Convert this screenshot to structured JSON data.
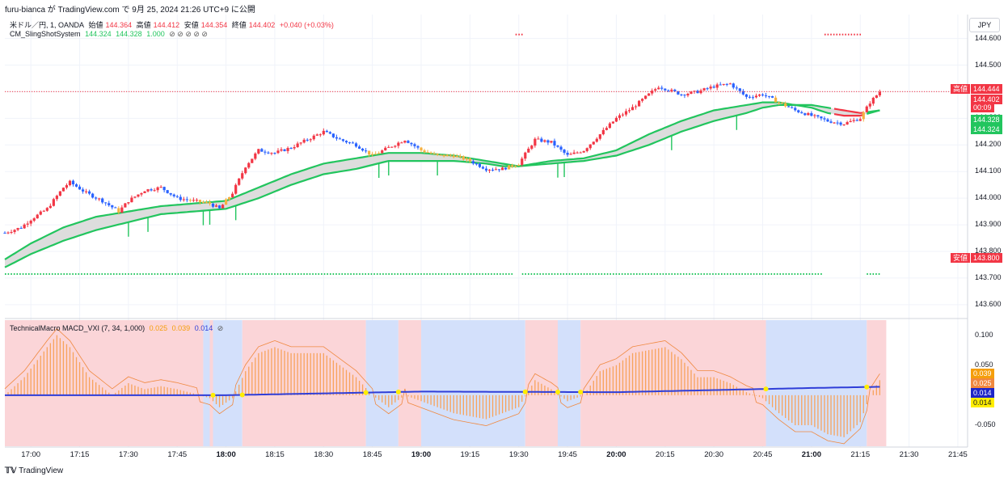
{
  "header": {
    "publish_line": "furu-bianca が TradingView.com で 9月 25, 2024 21:26 UTC+9 に公開"
  },
  "legend_main": {
    "symbol": "米ドル／円, 1, OANDA",
    "open_label": "始値",
    "open": "144.364",
    "high_label": "高値",
    "high": "144.412",
    "low_label": "安値",
    "low": "144.354",
    "close_label": "終値",
    "close": "144.402",
    "change": "+0.040 (+0.03%)"
  },
  "legend_indicator": {
    "name": "CM_SlingShotSystem",
    "v1": "144.324",
    "v2": "144.328",
    "v3": "1.000",
    "icons": "⊘ ⊘ ⊘ ⊘ ⊘"
  },
  "legend_macd": {
    "name": "TechnicalMacro MACD_VXI (7, 34, 1,000)",
    "v1": "0.025",
    "v2": "0.039",
    "v3": "0.014",
    "icon": "⊘"
  },
  "currency_button": "JPY",
  "footer": {
    "brand": "TradingView"
  },
  "price_tags": {
    "high_label": "高値",
    "high_value": "144.444",
    "last_value": "144.402",
    "countdown": "00:09",
    "ema_fast": "144.328",
    "ema_slow": "144.324",
    "low_label": "安値",
    "low_value": "143.800"
  },
  "macd_tags": {
    "t1": "0.039",
    "t2": "0.025",
    "t3": "0.014",
    "t4": "0.014"
  },
  "colors": {
    "up": "#f23645",
    "down": "#2962ff",
    "ema": "#22c55e",
    "band": "#dddddd",
    "macd_hist": "#f7a35c",
    "macd_line": "#2f3ed8",
    "bg_bull": "#fbd5d8",
    "bg_bear": "#d3e0fb"
  },
  "chart_data": [
    {
      "type": "candlestick",
      "title": "米ドル／円, 1, OANDA",
      "y_ticks": [
        "144.600",
        "144.500",
        "144.400",
        "144.300",
        "144.200",
        "144.100",
        "144.000",
        "143.900",
        "143.800",
        "143.700",
        "143.600"
      ],
      "x_ticks": [
        "17:00",
        "17:15",
        "17:30",
        "17:45",
        "18:00",
        "18:15",
        "18:30",
        "18:45",
        "19:00",
        "19:15",
        "19:30",
        "19:45",
        "20:00",
        "20:15",
        "20:30",
        "20:45",
        "21:00",
        "21:15",
        "21:30",
        "21:45"
      ],
      "bold_ticks": [
        "18:00",
        "19:00",
        "20:00",
        "21:00"
      ],
      "x_range": [
        "16:52",
        "21:48"
      ],
      "ylim": [
        143.56,
        144.69
      ],
      "price_anchors": [
        [
          "16:52",
          143.87
        ],
        [
          "16:57",
          143.89
        ],
        [
          "17:00",
          143.92
        ],
        [
          "17:05",
          143.96
        ],
        [
          "17:10",
          144.04
        ],
        [
          "17:12",
          144.06
        ],
        [
          "17:17",
          144.02
        ],
        [
          "17:22",
          143.99
        ],
        [
          "17:27",
          143.95
        ],
        [
          "17:30",
          143.99
        ],
        [
          "17:35",
          144.03
        ],
        [
          "17:40",
          144.04
        ],
        [
          "17:45",
          144.0
        ],
        [
          "17:50",
          143.99
        ],
        [
          "17:55",
          143.98
        ],
        [
          "17:58",
          143.96
        ],
        [
          "18:02",
          144.02
        ],
        [
          "18:06",
          144.12
        ],
        [
          "18:10",
          144.18
        ],
        [
          "18:15",
          144.17
        ],
        [
          "18:20",
          144.19
        ],
        [
          "18:25",
          144.22
        ],
        [
          "18:30",
          144.25
        ],
        [
          "18:35",
          144.22
        ],
        [
          "18:40",
          144.2
        ],
        [
          "18:45",
          144.16
        ],
        [
          "18:50",
          144.19
        ],
        [
          "18:55",
          144.22
        ],
        [
          "19:00",
          144.18
        ],
        [
          "19:05",
          144.16
        ],
        [
          "19:10",
          144.16
        ],
        [
          "19:15",
          144.14
        ],
        [
          "19:20",
          144.11
        ],
        [
          "19:25",
          144.11
        ],
        [
          "19:30",
          144.13
        ],
        [
          "19:35",
          144.22
        ],
        [
          "19:40",
          144.21
        ],
        [
          "19:45",
          144.16
        ],
        [
          "19:50",
          144.18
        ],
        [
          "19:55",
          144.24
        ],
        [
          "20:00",
          144.3
        ],
        [
          "20:05",
          144.34
        ],
        [
          "20:10",
          144.39
        ],
        [
          "20:13",
          144.42
        ],
        [
          "20:20",
          144.39
        ],
        [
          "20:25",
          144.4
        ],
        [
          "20:30",
          144.42
        ],
        [
          "20:35",
          144.43
        ],
        [
          "20:40",
          144.38
        ],
        [
          "20:45",
          144.39
        ],
        [
          "20:50",
          144.36
        ],
        [
          "20:55",
          144.33
        ],
        [
          "21:00",
          144.31
        ],
        [
          "21:05",
          144.29
        ],
        [
          "21:10",
          144.28
        ],
        [
          "21:15",
          144.3
        ],
        [
          "21:18",
          144.36
        ],
        [
          "21:21",
          144.4
        ]
      ],
      "ema_fast_anchors": [
        [
          "16:52",
          143.77
        ],
        [
          "17:00",
          143.83
        ],
        [
          "17:10",
          143.89
        ],
        [
          "17:20",
          143.93
        ],
        [
          "17:30",
          143.95
        ],
        [
          "17:40",
          143.97
        ],
        [
          "17:50",
          143.98
        ],
        [
          "18:00",
          143.99
        ],
        [
          "18:10",
          144.04
        ],
        [
          "18:20",
          144.09
        ],
        [
          "18:30",
          144.13
        ],
        [
          "18:40",
          144.15
        ],
        [
          "18:50",
          144.17
        ],
        [
          "19:00",
          144.17
        ],
        [
          "19:10",
          144.16
        ],
        [
          "19:20",
          144.14
        ],
        [
          "19:25",
          144.13
        ],
        [
          "19:30",
          144.12
        ],
        [
          "19:40",
          144.14
        ],
        [
          "19:50",
          144.15
        ],
        [
          "20:00",
          144.18
        ],
        [
          "20:10",
          144.24
        ],
        [
          "20:20",
          144.29
        ],
        [
          "20:30",
          144.33
        ],
        [
          "20:40",
          144.35
        ],
        [
          "20:45",
          144.36
        ],
        [
          "20:50",
          144.36
        ],
        [
          "21:00",
          144.34
        ],
        [
          "21:05",
          144.32
        ],
        [
          "21:10",
          144.31
        ],
        [
          "21:15",
          144.31
        ],
        [
          "21:21",
          144.33
        ]
      ],
      "ema_slow_anchors": [
        [
          "16:52",
          143.74
        ],
        [
          "17:00",
          143.79
        ],
        [
          "17:10",
          143.84
        ],
        [
          "17:20",
          143.88
        ],
        [
          "17:30",
          143.91
        ],
        [
          "17:40",
          143.94
        ],
        [
          "17:50",
          143.95
        ],
        [
          "18:00",
          143.96
        ],
        [
          "18:10",
          144.0
        ],
        [
          "18:20",
          144.05
        ],
        [
          "18:30",
          144.09
        ],
        [
          "18:40",
          144.11
        ],
        [
          "18:50",
          144.14
        ],
        [
          "19:00",
          144.14
        ],
        [
          "19:10",
          144.14
        ],
        [
          "19:20",
          144.13
        ],
        [
          "19:25",
          144.12
        ],
        [
          "19:30",
          144.12
        ],
        [
          "19:40",
          144.13
        ],
        [
          "19:50",
          144.14
        ],
        [
          "20:00",
          144.16
        ],
        [
          "20:10",
          144.2
        ],
        [
          "20:20",
          144.25
        ],
        [
          "20:30",
          144.29
        ],
        [
          "20:40",
          144.32
        ],
        [
          "20:45",
          144.34
        ],
        [
          "20:50",
          144.35
        ],
        [
          "21:00",
          144.35
        ],
        [
          "21:05",
          144.34
        ],
        [
          "21:10",
          144.33
        ],
        [
          "21:15",
          144.32
        ],
        [
          "21:21",
          144.33
        ]
      ],
      "high_marker": 144.444,
      "low_marker": 143.8,
      "current_price": 144.402
    },
    {
      "type": "bar",
      "title": "TechnicalMacro MACD_VXI (7, 34, 1,000)",
      "y_ticks": [
        "0.100",
        "0.050",
        "-0.050"
      ],
      "ylim": [
        -0.085,
        0.125
      ],
      "hist_anchors": [
        [
          "16:52",
          0.0
        ],
        [
          "16:58",
          0.03
        ],
        [
          "17:05",
          0.08
        ],
        [
          "17:08",
          0.1
        ],
        [
          "17:12",
          0.08
        ],
        [
          "17:18",
          0.03
        ],
        [
          "17:25",
          0.0
        ],
        [
          "17:30",
          0.02
        ],
        [
          "17:35",
          0.01
        ],
        [
          "17:40",
          0.015
        ],
        [
          "17:45",
          0.01
        ],
        [
          "17:50",
          0.003
        ],
        [
          "17:55",
          -0.005
        ],
        [
          "17:58",
          -0.02
        ],
        [
          "18:02",
          -0.005
        ],
        [
          "18:06",
          0.04
        ],
        [
          "18:10",
          0.07
        ],
        [
          "18:15",
          0.08
        ],
        [
          "18:20",
          0.07
        ],
        [
          "18:25",
          0.07
        ],
        [
          "18:30",
          0.07
        ],
        [
          "18:35",
          0.05
        ],
        [
          "18:40",
          0.03
        ],
        [
          "18:45",
          0.0
        ],
        [
          "18:50",
          -0.02
        ],
        [
          "18:55",
          0.0
        ],
        [
          "19:00",
          -0.01
        ],
        [
          "19:05",
          -0.02
        ],
        [
          "19:10",
          -0.03
        ],
        [
          "19:15",
          -0.035
        ],
        [
          "19:20",
          -0.04
        ],
        [
          "19:25",
          -0.03
        ],
        [
          "19:30",
          -0.02
        ],
        [
          "19:35",
          0.025
        ],
        [
          "19:40",
          0.01
        ],
        [
          "19:45",
          -0.01
        ],
        [
          "19:50",
          0.0
        ],
        [
          "19:55",
          0.04
        ],
        [
          "20:00",
          0.05
        ],
        [
          "20:05",
          0.07
        ],
        [
          "20:10",
          0.075
        ],
        [
          "20:15",
          0.08
        ],
        [
          "20:20",
          0.06
        ],
        [
          "20:25",
          0.03
        ],
        [
          "20:30",
          0.03
        ],
        [
          "20:35",
          0.02
        ],
        [
          "20:40",
          0.005
        ],
        [
          "20:45",
          -0.005
        ],
        [
          "20:50",
          -0.03
        ],
        [
          "20:55",
          -0.05
        ],
        [
          "21:00",
          -0.05
        ],
        [
          "21:05",
          -0.065
        ],
        [
          "21:10",
          -0.07
        ],
        [
          "21:15",
          -0.045
        ],
        [
          "21:18",
          0.0
        ],
        [
          "21:21",
          0.025
        ]
      ],
      "signal_anchors": [
        [
          "16:52",
          0.0
        ],
        [
          "18:00",
          0.0
        ],
        [
          "19:00",
          0.006
        ],
        [
          "20:00",
          0.005
        ],
        [
          "21:00",
          0.012
        ],
        [
          "21:21",
          0.014
        ]
      ],
      "bg_segments": [
        [
          "16:52",
          "17:53",
          "bull"
        ],
        [
          "17:53",
          "17:55",
          "bear"
        ],
        [
          "17:55",
          "17:56",
          "bull"
        ],
        [
          "17:56",
          "18:05",
          "bear"
        ],
        [
          "18:05",
          "18:43",
          "bull"
        ],
        [
          "18:43",
          "18:53",
          "bear"
        ],
        [
          "18:53",
          "19:00",
          "bull"
        ],
        [
          "19:00",
          "19:32",
          "bear"
        ],
        [
          "19:32",
          "19:42",
          "bull"
        ],
        [
          "19:42",
          "19:49",
          "bear"
        ],
        [
          "19:49",
          "20:46",
          "bull"
        ],
        [
          "20:46",
          "21:17",
          "bear"
        ],
        [
          "21:17",
          "21:23",
          "bull"
        ]
      ]
    }
  ]
}
